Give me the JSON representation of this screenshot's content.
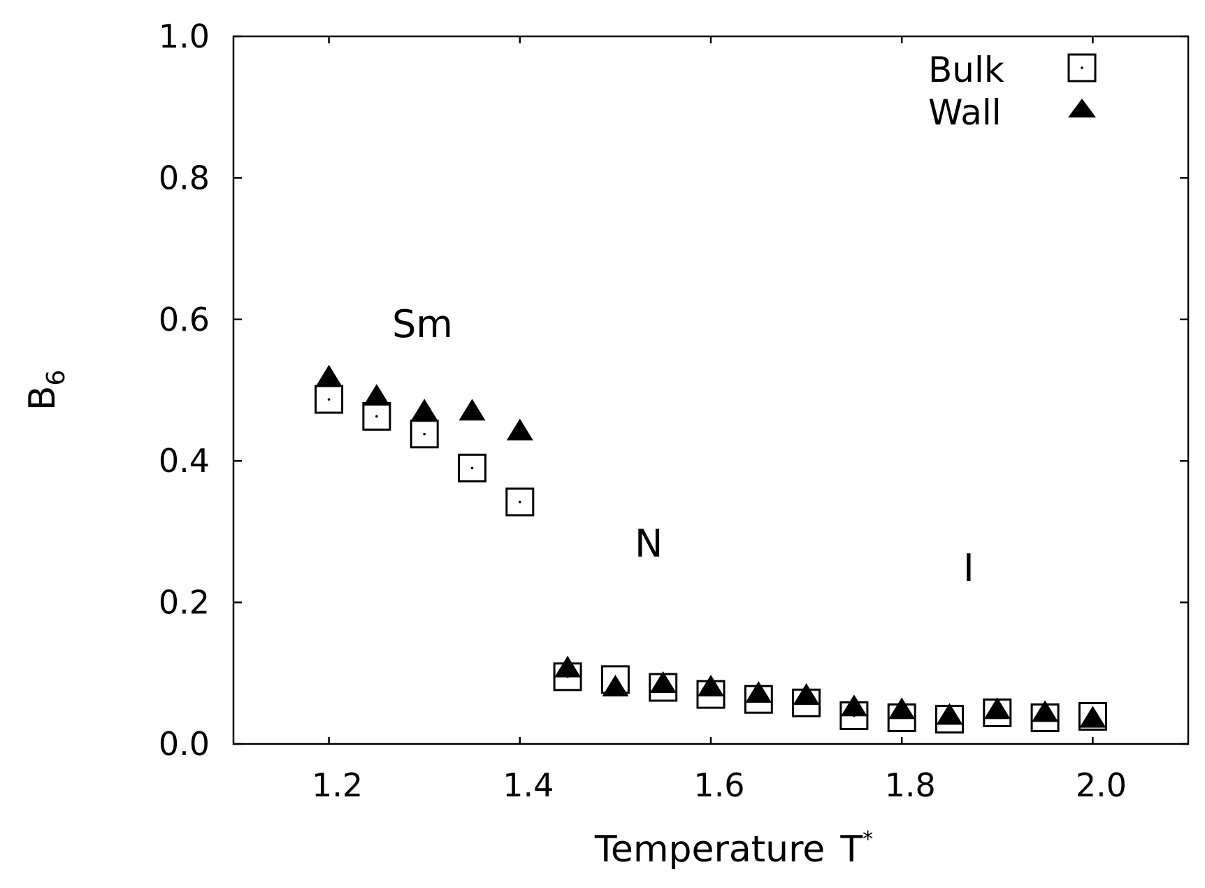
{
  "chart_data": {
    "type": "scatter",
    "title": "",
    "xlabel": "Temperature",
    "xlabel_symbol": "T",
    "xlabel_superscript": "*",
    "ylabel": "B",
    "ylabel_subscript": "6",
    "xlim": [
      1.1,
      2.1
    ],
    "ylim": [
      0.0,
      1.0
    ],
    "xticks": [
      1.2,
      1.4,
      1.6,
      1.8,
      2.0
    ],
    "xtick_labels": [
      "1.2",
      "1.4",
      "1.6",
      "1.8",
      "2.0"
    ],
    "yticks": [
      0.0,
      0.2,
      0.4,
      0.6,
      0.8,
      1.0
    ],
    "ytick_labels": [
      "0.0",
      "0.2",
      "0.4",
      "0.6",
      "0.8",
      "1.0"
    ],
    "grid": false,
    "legend_position": "top-right",
    "series": [
      {
        "name": "Bulk",
        "marker": "open-square-with-dot",
        "x": [
          1.2,
          1.25,
          1.3,
          1.35,
          1.4,
          1.45,
          1.5,
          1.55,
          1.6,
          1.65,
          1.7,
          1.75,
          1.8,
          1.85,
          1.9,
          1.95,
          2.0
        ],
        "y": [
          0.487,
          0.463,
          0.438,
          0.39,
          0.342,
          0.095,
          0.091,
          0.08,
          0.07,
          0.063,
          0.058,
          0.04,
          0.037,
          0.035,
          0.044,
          0.037,
          0.039
        ]
      },
      {
        "name": "Wall",
        "marker": "filled-triangle",
        "x": [
          1.2,
          1.25,
          1.3,
          1.35,
          1.4,
          1.45,
          1.5,
          1.55,
          1.6,
          1.65,
          1.7,
          1.75,
          1.8,
          1.85,
          1.9,
          1.95,
          2.0
        ],
        "y": [
          0.518,
          0.491,
          0.47,
          0.47,
          0.442,
          0.107,
          0.08,
          0.085,
          0.08,
          0.071,
          0.068,
          0.052,
          0.048,
          0.04,
          0.048,
          0.044,
          0.036
        ]
      }
    ],
    "annotations": [
      {
        "text": "Sm",
        "x": 1.298,
        "y": 0.575
      },
      {
        "text": "N",
        "x": 1.535,
        "y": 0.265
      },
      {
        "text": "I",
        "x": 1.87,
        "y": 0.23
      }
    ]
  }
}
